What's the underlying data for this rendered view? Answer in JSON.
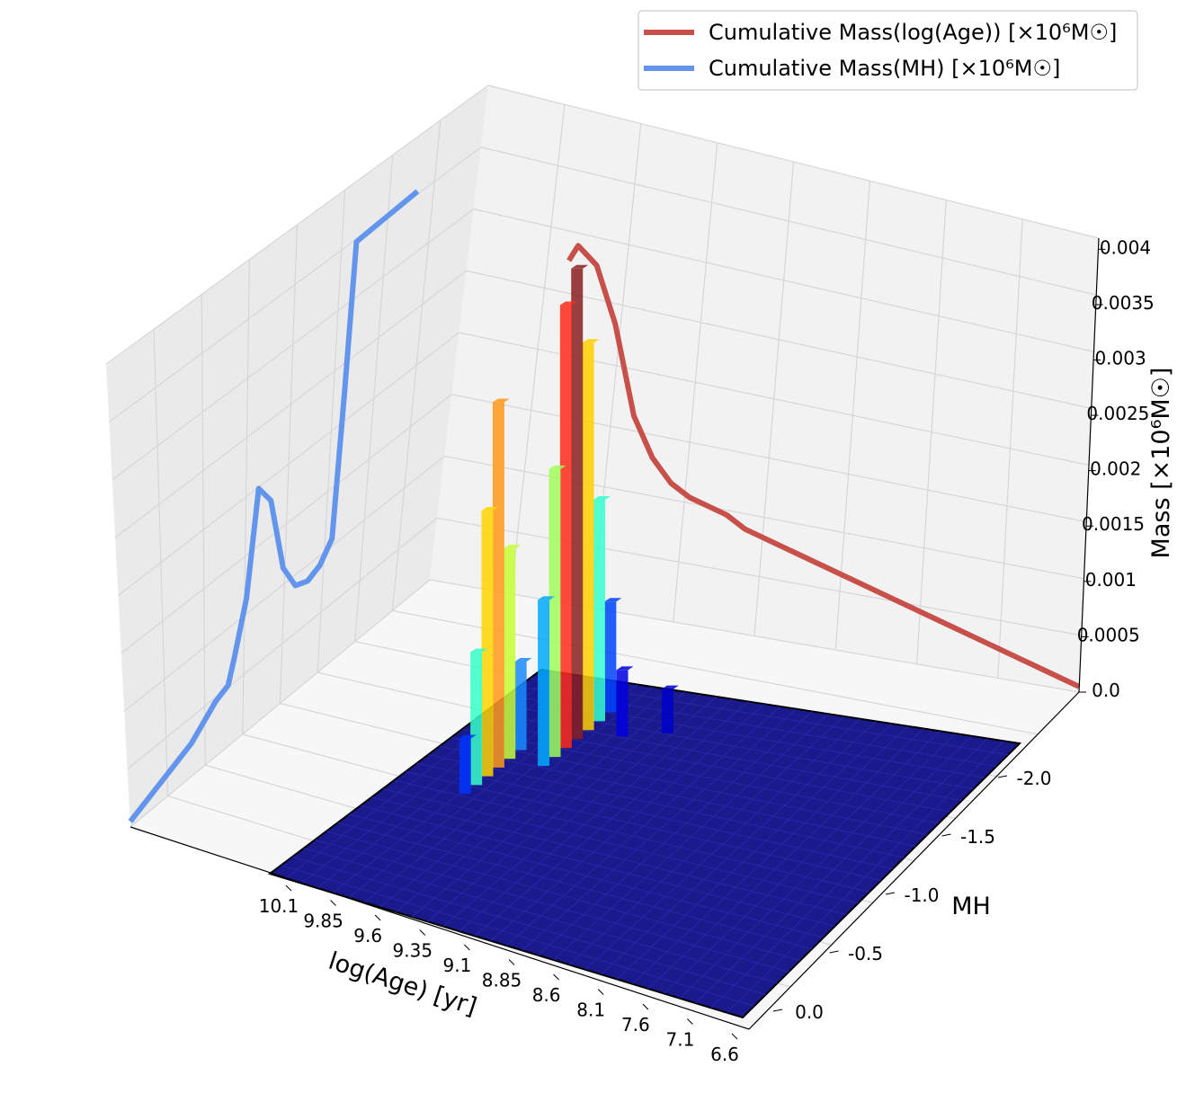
{
  "chart_data": {
    "type": "3d-bar",
    "title": "",
    "xlabel": "log(Age) [yr]",
    "ylabel": "MH",
    "zlabel": "Mass [×10⁶M☉]",
    "x_ticks": [
      "10.1",
      "9.85",
      "9.6",
      "9.35",
      "9.1",
      "8.85",
      "8.6",
      "8.1",
      "7.6",
      "7.1",
      "6.6"
    ],
    "y_ticks": [
      "0.0",
      "-0.5",
      "-1.0",
      "-1.5",
      "-2.0"
    ],
    "z_ticks": [
      "0.0",
      "0.0005",
      "0.001",
      "0.0015",
      "0.002",
      "0.0025",
      "0.003",
      "0.0035",
      "0.004"
    ],
    "zlim": [
      0,
      0.0041
    ],
    "colormap": "jet",
    "floor_color": "#1a1a8c",
    "bars": [
      {
        "age": 9.6,
        "mh": -1.2,
        "mass": 0.0033,
        "color": "#ff9a1a"
      },
      {
        "age": 9.6,
        "mh": -1.1,
        "mass": 0.0024,
        "color": "#ffd500"
      },
      {
        "age": 9.6,
        "mh": -1.3,
        "mass": 0.0019,
        "color": "#c8ff36"
      },
      {
        "age": 9.6,
        "mh": -1.0,
        "mass": 0.0012,
        "color": "#36ffc8"
      },
      {
        "age": 9.6,
        "mh": -1.4,
        "mass": 0.0008,
        "color": "#1a8cff"
      },
      {
        "age": 9.6,
        "mh": -0.9,
        "mass": 0.0005,
        "color": "#0033ff"
      },
      {
        "age": 9.35,
        "mh": -1.6,
        "mass": 0.00425,
        "color": "#8b2020"
      },
      {
        "age": 9.35,
        "mh": -1.5,
        "mass": 0.004,
        "color": "#ff2a1a"
      },
      {
        "age": 9.35,
        "mh": -1.7,
        "mass": 0.0035,
        "color": "#ffd000"
      },
      {
        "age": 9.35,
        "mh": -1.4,
        "mass": 0.0026,
        "color": "#a0ff5a"
      },
      {
        "age": 9.35,
        "mh": -1.8,
        "mass": 0.002,
        "color": "#36ffd0"
      },
      {
        "age": 9.35,
        "mh": -1.3,
        "mass": 0.0015,
        "color": "#00aaff"
      },
      {
        "age": 9.35,
        "mh": -1.9,
        "mass": 0.001,
        "color": "#0044ff"
      },
      {
        "age": 9.1,
        "mh": -1.7,
        "mass": 0.0006,
        "color": "#0000e0"
      },
      {
        "age": 8.85,
        "mh": -1.8,
        "mass": 0.0004,
        "color": "#0000cc"
      }
    ],
    "series": [
      {
        "name": "Cumulative Mass(log(Age)) [×10⁶M☉]",
        "color": "#c8504a",
        "x": [
          9.35,
          9.3,
          9.2,
          9.1,
          9.0,
          8.9,
          8.8,
          8.7,
          8.6,
          8.5,
          8.4,
          8.3,
          8.2,
          8.1,
          8.0,
          7.9,
          7.8,
          7.7,
          7.6,
          7.5,
          7.4,
          7.3,
          7.2,
          7.1,
          7.0,
          6.9,
          6.8,
          6.7,
          6.6
        ],
        "values": [
          0.0031,
          0.00325,
          0.0031,
          0.0026,
          0.0018,
          0.00145,
          0.00125,
          0.00115,
          0.0011,
          0.00105,
          0.00095,
          0.0009,
          0.00085,
          0.0008,
          0.00075,
          0.0007,
          0.00065,
          0.0006,
          0.00055,
          0.0005,
          0.00045,
          0.0004,
          0.00035,
          0.0003,
          0.00025,
          0.0002,
          0.00015,
          0.0001,
          5e-05
        ]
      },
      {
        "name": "Cumulative Mass(MH) [×10⁶M☉]",
        "color": "#6495ed",
        "x": [
          0.25,
          0.15,
          0.05,
          -0.05,
          -0.15,
          -0.25,
          -0.35,
          -0.45,
          -0.55,
          -0.6,
          -0.7,
          -0.8,
          -0.9,
          -1.0,
          -1.1,
          -1.2,
          -1.3,
          -1.4,
          -1.5,
          -1.6,
          -1.7,
          -1.8,
          -1.9,
          -2.0,
          -2.1
        ],
        "values": [
          5e-05,
          0.0001,
          0.00015,
          0.0002,
          0.00025,
          0.0003,
          0.0004,
          0.0005,
          0.00055,
          0.00075,
          0.0012,
          0.0021,
          0.0019,
          0.0012,
          0.00095,
          0.0009,
          0.00095,
          0.0011,
          0.0023,
          0.0036,
          0.0036,
          0.0036,
          0.0036,
          0.0036,
          0.0036
        ]
      }
    ],
    "legend": {
      "position": "top-right",
      "entries": [
        "Cumulative Mass(log(Age)) [×10⁶M☉]",
        "Cumulative Mass(MH) [×10⁶M☉]"
      ]
    }
  }
}
